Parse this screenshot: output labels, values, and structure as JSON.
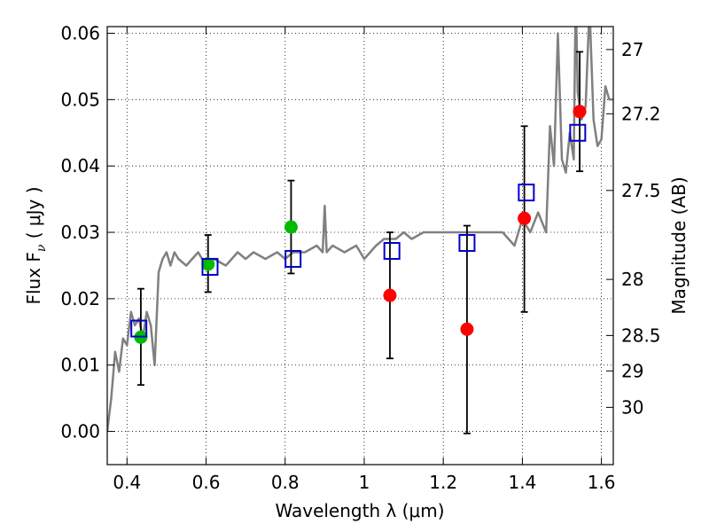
{
  "chart_data": {
    "type": "scatter",
    "xlabel": "Wavelength  λ (μm)",
    "ylabel": "Flux  F",
    "ylabel_sub": "ν",
    "ylabel_unit": "  ( μJy )",
    "y2label": "Magnitude (AB)",
    "xlim": [
      0.35,
      1.63
    ],
    "ylim": [
      -0.005,
      0.061
    ],
    "grid": true,
    "x_ticks": [
      0.4,
      0.6,
      0.8,
      1.0,
      1.2,
      1.4,
      1.6
    ],
    "x_tick_labels": [
      "0.4",
      "0.6",
      "0.8",
      "1",
      "1.2",
      "1.4",
      "1.6"
    ],
    "y_ticks": [
      0.0,
      0.01,
      0.02,
      0.03,
      0.04,
      0.05,
      0.06
    ],
    "y_tick_labels": [
      "0.00",
      "0.01",
      "0.02",
      "0.03",
      "0.04",
      "0.05",
      "0.06"
    ],
    "mag_ticks": [
      27,
      27.2,
      27.5,
      28,
      28.5,
      29,
      30
    ],
    "mag_tick_labels": [
      "27",
      "27.2",
      "27.5",
      "28",
      "28.5",
      "29",
      "30"
    ],
    "colors": {
      "model": "#808080",
      "green_points": "#00bb00",
      "red_points": "#ff0000",
      "boxes": "#0000cc",
      "errorbars": "#000000"
    },
    "series": [
      {
        "name": "model_sed",
        "kind": "line",
        "x": [
          0.35,
          0.36,
          0.37,
          0.38,
          0.39,
          0.4,
          0.41,
          0.42,
          0.43,
          0.44,
          0.45,
          0.46,
          0.47,
          0.48,
          0.49,
          0.5,
          0.51,
          0.52,
          0.53,
          0.55,
          0.58,
          0.6,
          0.62,
          0.65,
          0.68,
          0.7,
          0.72,
          0.75,
          0.78,
          0.8,
          0.82,
          0.85,
          0.88,
          0.895,
          0.9,
          0.905,
          0.92,
          0.95,
          0.98,
          1.0,
          1.03,
          1.05,
          1.08,
          1.1,
          1.12,
          1.15,
          1.18,
          1.2,
          1.25,
          1.3,
          1.35,
          1.38,
          1.4,
          1.42,
          1.44,
          1.46,
          1.47,
          1.48,
          1.49,
          1.5,
          1.51,
          1.52,
          1.53,
          1.535,
          1.54,
          1.55,
          1.56,
          1.57,
          1.58,
          1.59,
          1.6,
          1.61,
          1.62,
          1.63
        ],
        "y": [
          0.0,
          0.005,
          0.012,
          0.009,
          0.014,
          0.013,
          0.018,
          0.016,
          0.017,
          0.014,
          0.018,
          0.016,
          0.01,
          0.024,
          0.026,
          0.027,
          0.025,
          0.027,
          0.026,
          0.025,
          0.027,
          0.025,
          0.026,
          0.025,
          0.027,
          0.026,
          0.027,
          0.026,
          0.027,
          0.026,
          0.027,
          0.027,
          0.028,
          0.027,
          0.034,
          0.027,
          0.028,
          0.027,
          0.028,
          0.026,
          0.028,
          0.029,
          0.029,
          0.03,
          0.029,
          0.03,
          0.03,
          0.03,
          0.03,
          0.03,
          0.03,
          0.028,
          0.032,
          0.03,
          0.033,
          0.03,
          0.046,
          0.04,
          0.06,
          0.041,
          0.039,
          0.045,
          0.041,
          0.066,
          0.051,
          0.047,
          0.049,
          0.064,
          0.047,
          0.043,
          0.044,
          0.052,
          0.05,
          0.05
        ]
      },
      {
        "name": "green_points",
        "kind": "points",
        "marker": "circle",
        "x": [
          0.435,
          0.605,
          0.815
        ],
        "y": [
          0.0142,
          0.0252,
          0.0308
        ]
      },
      {
        "name": "red_points",
        "kind": "points",
        "marker": "circle",
        "x": [
          1.065,
          1.26,
          1.405,
          1.545
        ],
        "y": [
          0.0205,
          0.0154,
          0.0321,
          0.0482
        ]
      },
      {
        "name": "model_boxes",
        "kind": "points",
        "marker": "open-square",
        "x": [
          0.43,
          0.61,
          0.82,
          1.07,
          1.26,
          1.41,
          1.54
        ],
        "y": [
          0.0155,
          0.0248,
          0.026,
          0.0272,
          0.0284,
          0.036,
          0.045
        ]
      },
      {
        "name": "error_bars",
        "kind": "errorbar",
        "x": [
          0.435,
          0.605,
          0.815,
          1.065,
          1.26,
          1.405,
          1.545
        ],
        "ylow": [
          0.007,
          0.021,
          0.0238,
          0.011,
          -0.0003,
          0.018,
          0.0392
        ],
        "yhigh": [
          0.0215,
          0.0296,
          0.0378,
          0.03,
          0.031,
          0.046,
          0.0572
        ]
      }
    ]
  }
}
